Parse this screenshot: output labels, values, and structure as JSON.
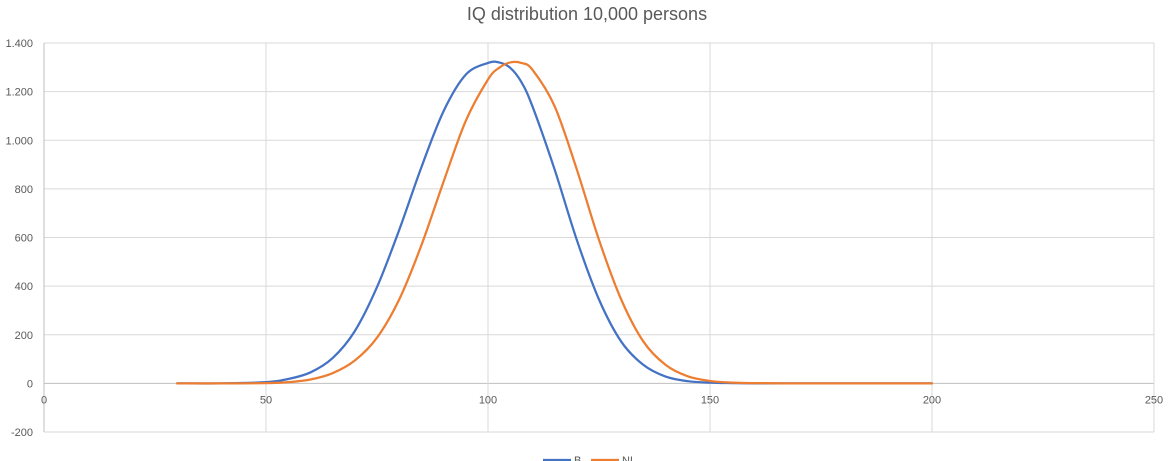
{
  "chart_data": {
    "type": "line",
    "title": "IQ distribution 10,000 persons",
    "xlabel": "",
    "ylabel": "",
    "xlim": [
      0,
      250
    ],
    "ylim": [
      -200,
      1400
    ],
    "x_ticks": [
      0,
      50,
      100,
      150,
      200,
      250
    ],
    "y_ticks": [
      -200,
      0,
      200,
      400,
      600,
      800,
      1000,
      1200,
      1400
    ],
    "x_tick_labels": [
      "0",
      "50",
      "100",
      "150",
      "200",
      "250"
    ],
    "y_tick_labels": [
      "-200",
      "0",
      "200",
      "400",
      "600",
      "800",
      "1.000",
      "1.200",
      "1.400"
    ],
    "grid": true,
    "legend_position": "bottom",
    "x": [
      30,
      40,
      50,
      55,
      60,
      65,
      70,
      75,
      80,
      85,
      90,
      95,
      100,
      102.5,
      105,
      107.5,
      110,
      115,
      120,
      125,
      130,
      135,
      140,
      145,
      150,
      155,
      160,
      170,
      180,
      190,
      200
    ],
    "series": [
      {
        "name": "B",
        "color": "#4472C4",
        "values": [
          0,
          0,
          5,
          18,
          45,
          104,
          215,
          396,
          631,
          889,
          1120,
          1270,
          1318,
          1320,
          1298,
          1240,
          1140,
          880,
          590,
          345,
          172,
          76,
          28,
          9,
          3,
          1,
          0,
          0,
          0,
          0,
          0
        ]
      },
      {
        "name": "NL",
        "color": "#ED7D31",
        "values": [
          0,
          0,
          1,
          5,
          16,
          42,
          94,
          188,
          345,
          568,
          830,
          1080,
          1250,
          1298,
          1320,
          1318,
          1290,
          1140,
          880,
          590,
          345,
          172,
          76,
          29,
          10,
          3,
          1,
          0,
          0,
          0,
          0
        ]
      }
    ]
  }
}
